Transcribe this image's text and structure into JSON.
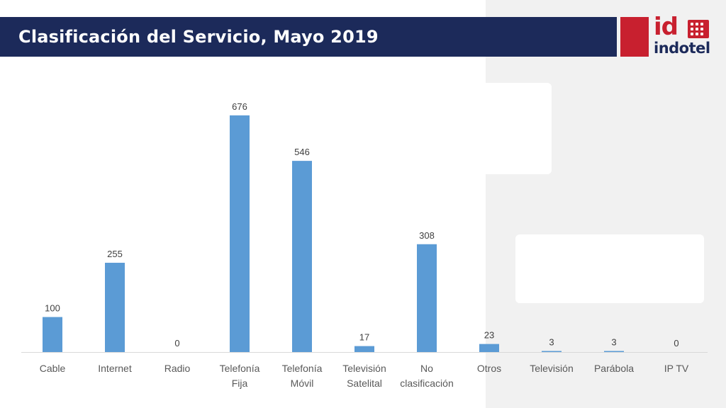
{
  "header": {
    "title": "Clasificación del Servicio, Mayo 2019"
  },
  "logo": {
    "mark": "id",
    "word": "indotel"
  },
  "colors": {
    "header_bg": "#1c2a5a",
    "brand_red": "#c8202f",
    "bar": "#5b9bd5",
    "panel": "#f1f1f1"
  },
  "chart_data": {
    "type": "bar",
    "title": "Clasificación del Servicio, Mayo 2019",
    "categories": [
      [
        "Cable"
      ],
      [
        "Internet"
      ],
      [
        "Radio"
      ],
      [
        "Telefonía",
        "Fija"
      ],
      [
        "Telefonía",
        "Móvil"
      ],
      [
        "Televisión",
        "Satelital"
      ],
      [
        "No",
        "clasificación"
      ],
      [
        "Otros"
      ],
      [
        "Televisión"
      ],
      [
        "Parábola"
      ],
      [
        "IP TV"
      ]
    ],
    "values": [
      100,
      255,
      0,
      676,
      546,
      17,
      308,
      23,
      3,
      3,
      0
    ],
    "xlabel": "",
    "ylabel": "",
    "ylim": [
      0,
      700
    ],
    "grid": false,
    "data_labels": true
  }
}
